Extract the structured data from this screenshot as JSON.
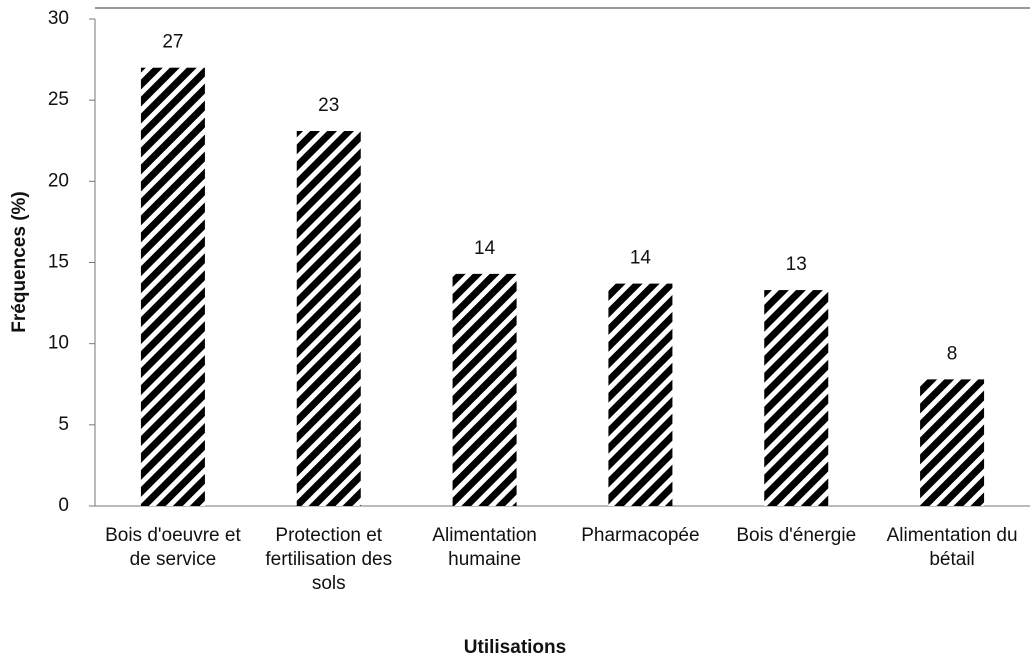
{
  "chart_data": {
    "type": "bar",
    "x_label": "Utilisations",
    "y_label": "Fréquences (%)",
    "categories": [
      "Bois d'oeuvre et de service",
      "Protection et fertilisation des sols",
      "Alimentation humaine",
      "Pharmacopée",
      "Bois d'énergie",
      "Alimentation du bétail"
    ],
    "values": [
      27,
      23.1,
      14.3,
      13.7,
      13.3,
      7.8
    ],
    "value_labels": [
      "27",
      "23",
      "14",
      "14",
      "13",
      "8"
    ],
    "color": "#000000",
    "ylim": [
      0,
      30
    ],
    "yticks": [
      0,
      5,
      10,
      15,
      20,
      25,
      30
    ],
    "grid": false
  }
}
